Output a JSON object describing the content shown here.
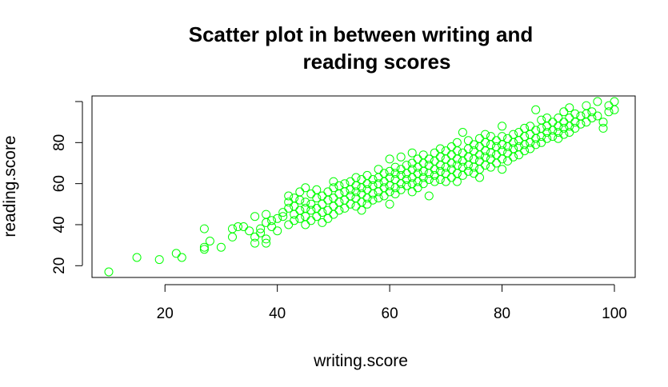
{
  "chart_data": {
    "type": "scatter",
    "title_line1": "Scatter plot in between writing and",
    "title_line2": "reading scores",
    "xlabel": "writing.score",
    "ylabel": "reading.score",
    "xlim": [
      10,
      100
    ],
    "ylim": [
      17,
      100
    ],
    "xticks": [
      20,
      40,
      60,
      80,
      100
    ],
    "yticks": [
      20,
      40,
      60,
      80
    ],
    "grid": false,
    "marker": "open-circle",
    "point_color": "#00ff00",
    "points": [
      [
        10,
        17
      ],
      [
        15,
        24
      ],
      [
        19,
        23
      ],
      [
        22,
        26
      ],
      [
        23,
        24
      ],
      [
        27,
        28
      ],
      [
        27,
        29
      ],
      [
        27,
        38
      ],
      [
        28,
        32
      ],
      [
        30,
        29
      ],
      [
        32,
        34
      ],
      [
        32,
        38
      ],
      [
        33,
        39
      ],
      [
        34,
        39
      ],
      [
        35,
        37
      ],
      [
        36,
        31
      ],
      [
        36,
        34
      ],
      [
        36,
        44
      ],
      [
        37,
        36
      ],
      [
        37,
        38
      ],
      [
        38,
        31
      ],
      [
        38,
        33
      ],
      [
        38,
        41
      ],
      [
        38,
        45
      ],
      [
        39,
        39
      ],
      [
        39,
        42
      ],
      [
        40,
        37
      ],
      [
        40,
        43
      ],
      [
        41,
        44
      ],
      [
        41,
        46
      ],
      [
        42,
        40
      ],
      [
        42,
        48
      ],
      [
        42,
        51
      ],
      [
        42,
        54
      ],
      [
        43,
        42
      ],
      [
        43,
        45
      ],
      [
        43,
        49
      ],
      [
        43,
        53
      ],
      [
        44,
        43
      ],
      [
        44,
        47
      ],
      [
        44,
        52
      ],
      [
        44,
        56
      ],
      [
        45,
        40
      ],
      [
        45,
        44
      ],
      [
        45,
        48
      ],
      [
        45,
        51
      ],
      [
        45,
        58
      ],
      [
        46,
        42
      ],
      [
        46,
        47
      ],
      [
        46,
        50
      ],
      [
        46,
        55
      ],
      [
        47,
        44
      ],
      [
        47,
        48
      ],
      [
        47,
        53
      ],
      [
        47,
        57
      ],
      [
        48,
        41
      ],
      [
        48,
        46
      ],
      [
        48,
        50
      ],
      [
        48,
        54
      ],
      [
        49,
        43
      ],
      [
        49,
        47
      ],
      [
        49,
        52
      ],
      [
        49,
        56
      ],
      [
        50,
        45
      ],
      [
        50,
        49
      ],
      [
        50,
        53
      ],
      [
        50,
        58
      ],
      [
        50,
        61
      ],
      [
        51,
        47
      ],
      [
        51,
        51
      ],
      [
        51,
        55
      ],
      [
        51,
        59
      ],
      [
        52,
        48
      ],
      [
        52,
        52
      ],
      [
        52,
        56
      ],
      [
        52,
        60
      ],
      [
        53,
        50
      ],
      [
        53,
        54
      ],
      [
        53,
        57
      ],
      [
        53,
        61
      ],
      [
        54,
        49
      ],
      [
        54,
        53
      ],
      [
        54,
        56
      ],
      [
        54,
        59
      ],
      [
        54,
        63
      ],
      [
        55,
        47
      ],
      [
        55,
        51
      ],
      [
        55,
        55
      ],
      [
        55,
        58
      ],
      [
        55,
        62
      ],
      [
        56,
        50
      ],
      [
        56,
        53
      ],
      [
        56,
        57
      ],
      [
        56,
        60
      ],
      [
        56,
        64
      ],
      [
        57,
        52
      ],
      [
        57,
        55
      ],
      [
        57,
        59
      ],
      [
        57,
        62
      ],
      [
        58,
        53
      ],
      [
        58,
        56
      ],
      [
        58,
        60
      ],
      [
        58,
        63
      ],
      [
        58,
        67
      ],
      [
        59,
        54
      ],
      [
        59,
        58
      ],
      [
        59,
        61
      ],
      [
        59,
        65
      ],
      [
        60,
        50
      ],
      [
        60,
        56
      ],
      [
        60,
        59
      ],
      [
        60,
        63
      ],
      [
        60,
        66
      ],
      [
        60,
        72
      ],
      [
        61,
        55
      ],
      [
        61,
        58
      ],
      [
        61,
        62
      ],
      [
        61,
        65
      ],
      [
        61,
        68
      ],
      [
        62,
        57
      ],
      [
        62,
        60
      ],
      [
        62,
        64
      ],
      [
        62,
        67
      ],
      [
        62,
        73
      ],
      [
        63,
        59
      ],
      [
        63,
        62
      ],
      [
        63,
        65
      ],
      [
        63,
        69
      ],
      [
        64,
        56
      ],
      [
        64,
        60
      ],
      [
        64,
        63
      ],
      [
        64,
        67
      ],
      [
        64,
        70
      ],
      [
        64,
        75
      ],
      [
        65,
        58
      ],
      [
        65,
        61
      ],
      [
        65,
        65
      ],
      [
        65,
        68
      ],
      [
        65,
        72
      ],
      [
        66,
        60
      ],
      [
        66,
        63
      ],
      [
        66,
        66
      ],
      [
        66,
        70
      ],
      [
        66,
        74
      ],
      [
        67,
        54
      ],
      [
        67,
        62
      ],
      [
        67,
        65
      ],
      [
        67,
        69
      ],
      [
        67,
        72
      ],
      [
        68,
        61
      ],
      [
        68,
        64
      ],
      [
        68,
        67
      ],
      [
        68,
        71
      ],
      [
        68,
        75
      ],
      [
        69,
        62
      ],
      [
        69,
        66
      ],
      [
        69,
        69
      ],
      [
        69,
        73
      ],
      [
        69,
        77
      ],
      [
        70,
        61
      ],
      [
        70,
        65
      ],
      [
        70,
        68
      ],
      [
        70,
        72
      ],
      [
        70,
        76
      ],
      [
        71,
        63
      ],
      [
        71,
        67
      ],
      [
        71,
        70
      ],
      [
        71,
        74
      ],
      [
        71,
        78
      ],
      [
        72,
        61
      ],
      [
        72,
        65
      ],
      [
        72,
        69
      ],
      [
        72,
        72
      ],
      [
        72,
        76
      ],
      [
        72,
        80
      ],
      [
        73,
        64
      ],
      [
        73,
        68
      ],
      [
        73,
        71
      ],
      [
        73,
        75
      ],
      [
        73,
        85
      ],
      [
        74,
        66
      ],
      [
        74,
        69
      ],
      [
        74,
        73
      ],
      [
        74,
        77
      ],
      [
        74,
        81
      ],
      [
        75,
        65
      ],
      [
        75,
        68
      ],
      [
        75,
        72
      ],
      [
        75,
        76
      ],
      [
        75,
        79
      ],
      [
        76,
        63
      ],
      [
        76,
        67
      ],
      [
        76,
        71
      ],
      [
        76,
        74
      ],
      [
        76,
        78
      ],
      [
        76,
        82
      ],
      [
        77,
        69
      ],
      [
        77,
        73
      ],
      [
        77,
        76
      ],
      [
        77,
        80
      ],
      [
        77,
        84
      ],
      [
        78,
        68
      ],
      [
        78,
        72
      ],
      [
        78,
        75
      ],
      [
        78,
        79
      ],
      [
        78,
        83
      ],
      [
        79,
        70
      ],
      [
        79,
        74
      ],
      [
        79,
        78
      ],
      [
        79,
        81
      ],
      [
        80,
        67
      ],
      [
        80,
        72
      ],
      [
        80,
        76
      ],
      [
        80,
        79
      ],
      [
        80,
        83
      ],
      [
        80,
        88
      ],
      [
        81,
        71
      ],
      [
        81,
        75
      ],
      [
        81,
        78
      ],
      [
        81,
        82
      ],
      [
        82,
        73
      ],
      [
        82,
        77
      ],
      [
        82,
        80
      ],
      [
        82,
        84
      ],
      [
        83,
        74
      ],
      [
        83,
        78
      ],
      [
        83,
        81
      ],
      [
        83,
        85
      ],
      [
        84,
        76
      ],
      [
        84,
        79
      ],
      [
        84,
        83
      ],
      [
        84,
        87
      ],
      [
        85,
        77
      ],
      [
        85,
        80
      ],
      [
        85,
        84
      ],
      [
        85,
        88
      ],
      [
        86,
        79
      ],
      [
        86,
        82
      ],
      [
        86,
        86
      ],
      [
        86,
        96
      ],
      [
        87,
        80
      ],
      [
        87,
        83
      ],
      [
        87,
        87
      ],
      [
        87,
        91
      ],
      [
        88,
        82
      ],
      [
        88,
        85
      ],
      [
        88,
        88
      ],
      [
        88,
        92
      ],
      [
        89,
        83
      ],
      [
        89,
        86
      ],
      [
        89,
        90
      ],
      [
        90,
        82
      ],
      [
        90,
        85
      ],
      [
        90,
        88
      ],
      [
        90,
        92
      ],
      [
        91,
        84
      ],
      [
        91,
        87
      ],
      [
        91,
        90
      ],
      [
        91,
        95
      ],
      [
        92,
        85
      ],
      [
        92,
        88
      ],
      [
        92,
        92
      ],
      [
        92,
        97
      ],
      [
        93,
        87
      ],
      [
        93,
        90
      ],
      [
        93,
        94
      ],
      [
        94,
        89
      ],
      [
        94,
        93
      ],
      [
        95,
        90
      ],
      [
        95,
        94
      ],
      [
        95,
        98
      ],
      [
        96,
        92
      ],
      [
        96,
        95
      ],
      [
        97,
        93
      ],
      [
        97,
        100
      ],
      [
        98,
        87
      ],
      [
        98,
        90
      ],
      [
        99,
        95
      ],
      [
        99,
        98
      ],
      [
        100,
        96
      ],
      [
        100,
        100
      ]
    ]
  }
}
